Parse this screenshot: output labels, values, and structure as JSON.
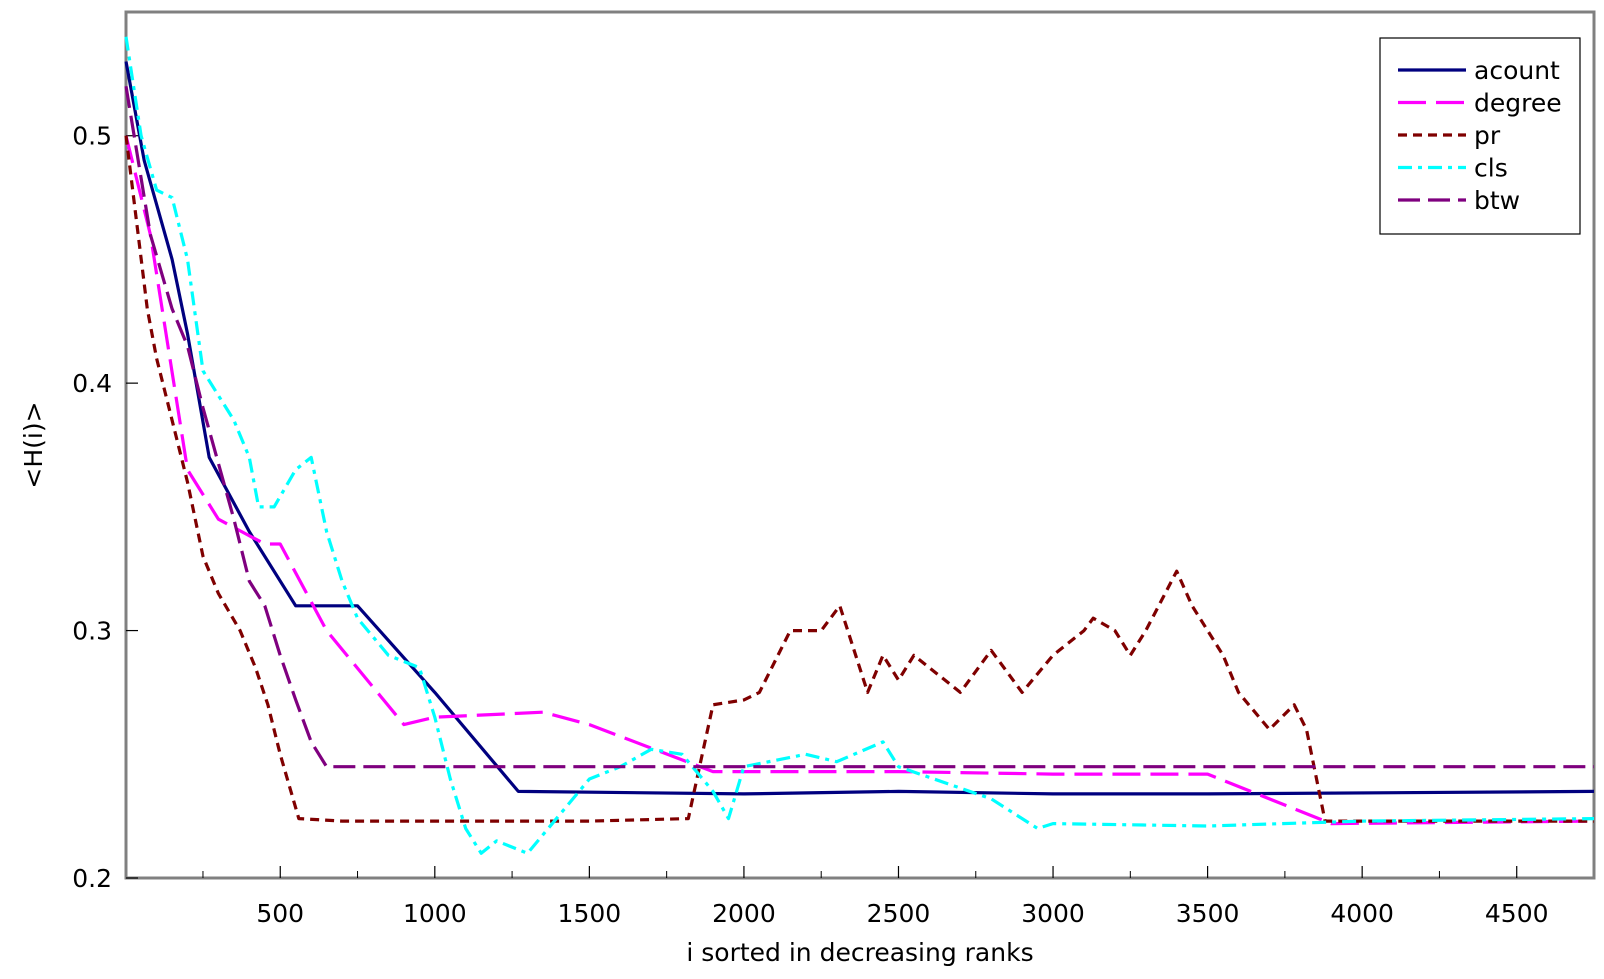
{
  "chart_data": {
    "type": "line",
    "xlabel": "i sorted in decreasing ranks",
    "ylabel": "<H(i)>",
    "xlim": [
      1,
      4750
    ],
    "ylim": [
      0.2,
      0.55
    ],
    "x_ticks": [
      500,
      1000,
      1500,
      2000,
      2500,
      3000,
      3500,
      4000,
      4500
    ],
    "x_tick_labels": [
      "500",
      "1000",
      "1500",
      "2000",
      "2500",
      "3000",
      "3500",
      "4000",
      "4500"
    ],
    "y_ticks": [
      0.2,
      0.3,
      0.4,
      0.5
    ],
    "y_tick_labels": [
      "0.2",
      "0.3",
      "0.4",
      "0.5"
    ],
    "grid": false,
    "legend_position": "top-right",
    "series": [
      {
        "name": "acount",
        "color": "#00007f",
        "dash": "solid",
        "points": [
          [
            1,
            0.53
          ],
          [
            60,
            0.49
          ],
          [
            150,
            0.45
          ],
          [
            200,
            0.42
          ],
          [
            270,
            0.37
          ],
          [
            400,
            0.34
          ],
          [
            550,
            0.31
          ],
          [
            750,
            0.31
          ],
          [
            1000,
            0.275
          ],
          [
            1270,
            0.235
          ],
          [
            2000,
            0.234
          ],
          [
            2500,
            0.235
          ],
          [
            3000,
            0.234
          ],
          [
            3500,
            0.234
          ],
          [
            4750,
            0.235
          ]
        ]
      },
      {
        "name": "degree",
        "color": "#ff00ff",
        "dash": "long-dash",
        "points": [
          [
            1,
            0.5
          ],
          [
            80,
            0.46
          ],
          [
            200,
            0.365
          ],
          [
            300,
            0.345
          ],
          [
            450,
            0.335
          ],
          [
            500,
            0.335
          ],
          [
            650,
            0.3
          ],
          [
            900,
            0.262
          ],
          [
            1000,
            0.265
          ],
          [
            1350,
            0.267
          ],
          [
            1500,
            0.262
          ],
          [
            1900,
            0.243
          ],
          [
            2500,
            0.243
          ],
          [
            3000,
            0.242
          ],
          [
            3500,
            0.242
          ],
          [
            3900,
            0.222
          ],
          [
            4750,
            0.223
          ]
        ]
      },
      {
        "name": "pr",
        "color": "#7f0000",
        "dash": "short-dash",
        "points": [
          [
            1,
            0.5
          ],
          [
            70,
            0.43
          ],
          [
            100,
            0.41
          ],
          [
            150,
            0.385
          ],
          [
            200,
            0.36
          ],
          [
            250,
            0.33
          ],
          [
            300,
            0.315
          ],
          [
            370,
            0.3
          ],
          [
            420,
            0.285
          ],
          [
            460,
            0.27
          ],
          [
            500,
            0.25
          ],
          [
            560,
            0.224
          ],
          [
            700,
            0.223
          ],
          [
            1000,
            0.223
          ],
          [
            1500,
            0.223
          ],
          [
            1820,
            0.224
          ],
          [
            1900,
            0.27
          ],
          [
            2000,
            0.272
          ],
          [
            2050,
            0.275
          ],
          [
            2150,
            0.3
          ],
          [
            2250,
            0.3
          ],
          [
            2310,
            0.31
          ],
          [
            2400,
            0.275
          ],
          [
            2450,
            0.29
          ],
          [
            2500,
            0.28
          ],
          [
            2550,
            0.29
          ],
          [
            2600,
            0.285
          ],
          [
            2700,
            0.275
          ],
          [
            2800,
            0.292
          ],
          [
            2900,
            0.275
          ],
          [
            3000,
            0.29
          ],
          [
            3100,
            0.3
          ],
          [
            3130,
            0.305
          ],
          [
            3200,
            0.3
          ],
          [
            3250,
            0.29
          ],
          [
            3300,
            0.3
          ],
          [
            3400,
            0.324
          ],
          [
            3450,
            0.31
          ],
          [
            3550,
            0.29
          ],
          [
            3600,
            0.275
          ],
          [
            3700,
            0.26
          ],
          [
            3780,
            0.27
          ],
          [
            3820,
            0.26
          ],
          [
            3880,
            0.223
          ],
          [
            4000,
            0.223
          ],
          [
            4750,
            0.223
          ]
        ]
      },
      {
        "name": "cls",
        "color": "#00ffff",
        "dash": "dash-dot",
        "points": [
          [
            1,
            0.54
          ],
          [
            50,
            0.5
          ],
          [
            100,
            0.478
          ],
          [
            150,
            0.475
          ],
          [
            200,
            0.45
          ],
          [
            250,
            0.405
          ],
          [
            300,
            0.395
          ],
          [
            350,
            0.385
          ],
          [
            400,
            0.37
          ],
          [
            430,
            0.35
          ],
          [
            480,
            0.35
          ],
          [
            550,
            0.365
          ],
          [
            600,
            0.37
          ],
          [
            650,
            0.34
          ],
          [
            700,
            0.32
          ],
          [
            750,
            0.305
          ],
          [
            850,
            0.29
          ],
          [
            950,
            0.285
          ],
          [
            1000,
            0.265
          ],
          [
            1050,
            0.24
          ],
          [
            1100,
            0.22
          ],
          [
            1150,
            0.21
          ],
          [
            1200,
            0.215
          ],
          [
            1300,
            0.21
          ],
          [
            1400,
            0.225
          ],
          [
            1500,
            0.24
          ],
          [
            1600,
            0.245
          ],
          [
            1700,
            0.252
          ],
          [
            1800,
            0.25
          ],
          [
            1900,
            0.235
          ],
          [
            1950,
            0.224
          ],
          [
            2000,
            0.245
          ],
          [
            2200,
            0.25
          ],
          [
            2300,
            0.247
          ],
          [
            2450,
            0.255
          ],
          [
            2500,
            0.245
          ],
          [
            2800,
            0.232
          ],
          [
            2950,
            0.22
          ],
          [
            3000,
            0.222
          ],
          [
            3500,
            0.221
          ],
          [
            4000,
            0.223
          ],
          [
            4750,
            0.224
          ]
        ]
      },
      {
        "name": "btw",
        "color": "#7f007f",
        "dash": "dash",
        "points": [
          [
            1,
            0.52
          ],
          [
            80,
            0.46
          ],
          [
            150,
            0.43
          ],
          [
            200,
            0.415
          ],
          [
            250,
            0.39
          ],
          [
            350,
            0.345
          ],
          [
            400,
            0.32
          ],
          [
            450,
            0.31
          ],
          [
            500,
            0.29
          ],
          [
            550,
            0.272
          ],
          [
            600,
            0.255
          ],
          [
            650,
            0.245
          ],
          [
            1000,
            0.245
          ],
          [
            1500,
            0.245
          ],
          [
            2000,
            0.245
          ],
          [
            2500,
            0.245
          ],
          [
            3000,
            0.245
          ],
          [
            3500,
            0.245
          ],
          [
            4000,
            0.245
          ],
          [
            4750,
            0.245
          ]
        ]
      }
    ]
  }
}
